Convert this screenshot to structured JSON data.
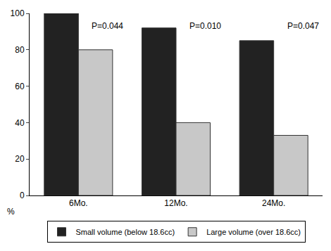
{
  "chart_data": {
    "type": "bar",
    "categories": [
      "6Mo.",
      "12Mo.",
      "24Mo."
    ],
    "series": [
      {
        "name": "Small volume (below 18.6cc)",
        "color": "#222222",
        "values": [
          100,
          92,
          85
        ]
      },
      {
        "name": "Large volume (over 18.6cc)",
        "color": "#c8c8c8",
        "values": [
          80,
          40,
          33
        ]
      }
    ],
    "annotations": [
      "P=0.044",
      "P=0.010",
      "P=0.047"
    ],
    "ylabel": "%",
    "ylim": [
      0,
      100
    ],
    "yticks": [
      0,
      20,
      40,
      60,
      80,
      100
    ],
    "grid": false,
    "legend": "bottom"
  }
}
